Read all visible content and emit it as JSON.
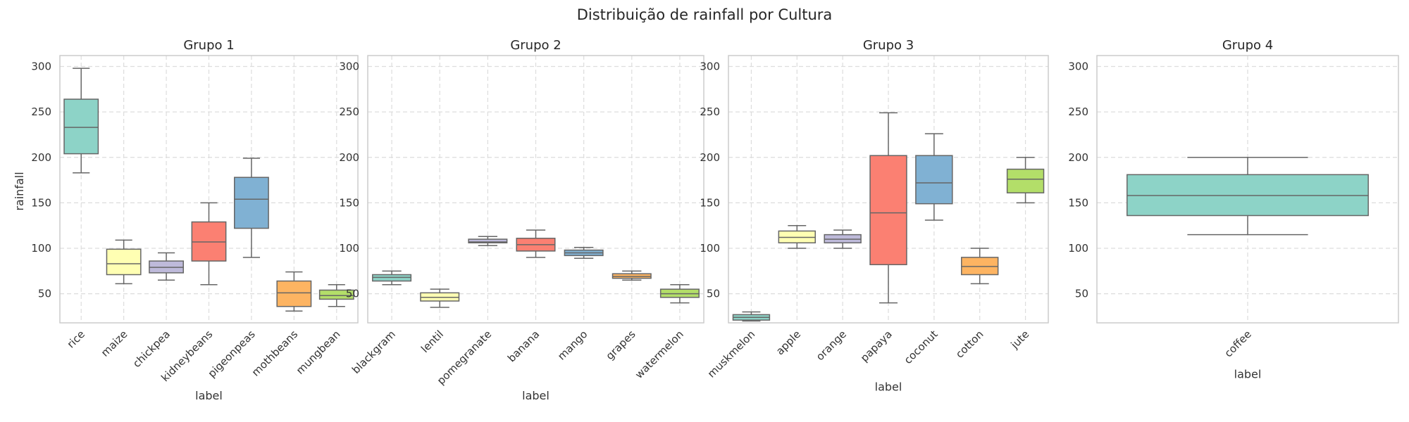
{
  "chart_data": {
    "type": "box",
    "title": "Distribuição de rainfall por Cultura",
    "ylabel": "rainfall",
    "xlabel": "label",
    "ylim": [
      18,
      312
    ],
    "yticks": [
      50,
      100,
      150,
      200,
      250,
      300
    ],
    "grid": true,
    "palette": [
      "#8dd3c7",
      "#ffffb3",
      "#bebada",
      "#fb8072",
      "#80b1d3",
      "#fdb462",
      "#b3de69"
    ],
    "panels": [
      {
        "title": "Grupo 1",
        "categories": [
          "rice",
          "maize",
          "chickpea",
          "kidneybeans",
          "pigeonpeas",
          "mothbeans",
          "mungbean"
        ],
        "boxes": [
          {
            "min": 183,
            "q1": 204,
            "median": 233,
            "q3": 264,
            "max": 298
          },
          {
            "min": 61,
            "q1": 71,
            "median": 83,
            "q3": 99,
            "max": 109
          },
          {
            "min": 65,
            "q1": 73,
            "median": 79,
            "q3": 86,
            "max": 95
          },
          {
            "min": 60,
            "q1": 86,
            "median": 107,
            "q3": 129,
            "max": 150
          },
          {
            "min": 90,
            "q1": 122,
            "median": 154,
            "q3": 178,
            "max": 199
          },
          {
            "min": 31,
            "q1": 36,
            "median": 51,
            "q3": 64,
            "max": 74
          },
          {
            "min": 36,
            "q1": 44,
            "median": 48,
            "q3": 54,
            "max": 60
          }
        ]
      },
      {
        "title": "Grupo 2",
        "categories": [
          "blackgram",
          "lentil",
          "pomegranate",
          "banana",
          "mango",
          "grapes",
          "watermelon"
        ],
        "boxes": [
          {
            "min": 60,
            "q1": 64,
            "median": 68,
            "q3": 71,
            "max": 75
          },
          {
            "min": 35,
            "q1": 42,
            "median": 46,
            "q3": 51,
            "max": 55
          },
          {
            "min": 103,
            "q1": 106,
            "median": 107,
            "q3": 110,
            "max": 113
          },
          {
            "min": 90,
            "q1": 97,
            "median": 104,
            "q3": 111,
            "max": 120
          },
          {
            "min": 89,
            "q1": 92,
            "median": 95,
            "q3": 98,
            "max": 101
          },
          {
            "min": 65,
            "q1": 67,
            "median": 69,
            "q3": 72,
            "max": 75
          },
          {
            "min": 40,
            "q1": 46,
            "median": 50,
            "q3": 55,
            "max": 60
          }
        ]
      },
      {
        "title": "Grupo 3",
        "categories": [
          "muskmelon",
          "apple",
          "orange",
          "papaya",
          "coconut",
          "cotton",
          "jute"
        ],
        "boxes": [
          {
            "min": 20,
            "q1": 21,
            "median": 24,
            "q3": 27,
            "max": 30
          },
          {
            "min": 100,
            "q1": 106,
            "median": 112,
            "q3": 119,
            "max": 125
          },
          {
            "min": 100,
            "q1": 106,
            "median": 110,
            "q3": 115,
            "max": 120
          },
          {
            "min": 40,
            "q1": 82,
            "median": 139,
            "q3": 202,
            "max": 249
          },
          {
            "min": 131,
            "q1": 149,
            "median": 172,
            "q3": 202,
            "max": 226
          },
          {
            "min": 61,
            "q1": 71,
            "median": 80,
            "q3": 90,
            "max": 100
          },
          {
            "min": 150,
            "q1": 161,
            "median": 176,
            "q3": 187,
            "max": 200
          }
        ]
      },
      {
        "title": "Grupo 4",
        "categories": [
          "coffee"
        ],
        "boxes": [
          {
            "min": 115,
            "q1": 136,
            "median": 158,
            "q3": 181,
            "max": 200
          }
        ]
      }
    ]
  }
}
